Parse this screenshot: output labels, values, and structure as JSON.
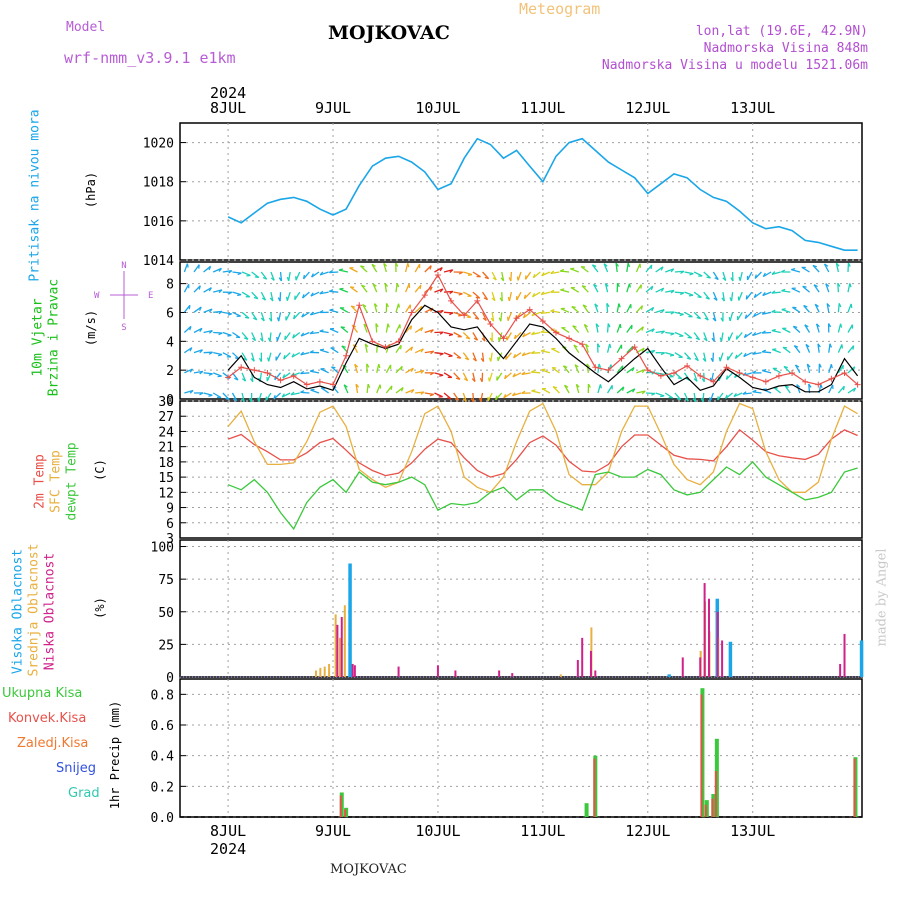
{
  "header": {
    "model_label": "Model",
    "model_name": "wrf-nmm_v3.9.1 e1km",
    "location": "MOJKOVAC",
    "product": "Meteogram",
    "coords": "lon,lat (19.6E, 42.9N)",
    "elevation": "Nadmorska Visina 848m",
    "model_elevation": "Nadmorska Visina u modelu 1521.06m",
    "footer_location": "MOJKOVAC",
    "signature": "made by Angel"
  },
  "colors": {
    "model": "#b85cd6",
    "product": "#f2c27a",
    "info": "#b24fd0",
    "pressure": "#1aa6e8",
    "wind_label_1": "#18c018",
    "wind_label_2": "#18c018",
    "temp2m": "#e8504a",
    "sfc": "#e8b040",
    "dew": "#3cc83c",
    "cloud_high": "#1aa6e8",
    "cloud_mid": "#e8b040",
    "cloud_low": "#d0208a",
    "precip_total": "#3cc83c",
    "precip_conv": "#e8504a",
    "precip_frz": "#f07830",
    "snow": "#3050e0",
    "graupel": "#30c8b0",
    "wind_speed": "#000000",
    "wind_gust": "#e8504a",
    "grid": "#a0a0a0"
  },
  "time_axis": {
    "year": "2024",
    "day_labels": [
      "8JUL",
      "9JUL",
      "10JUL",
      "11JUL",
      "12JUL",
      "13JUL"
    ]
  },
  "panel_labels": {
    "pressure": [
      "Pritisak na nivou mora",
      "(hPa)"
    ],
    "wind": [
      "10m Vjetar",
      "Brzina i Pravac",
      "(m/s)"
    ],
    "wind_rose": "N S W E",
    "temp": [
      "2m Temp",
      "SFC Temp",
      "dewpt Temp",
      "(C)"
    ],
    "cloud": [
      "Visoka Oblacnost",
      "Srednja Oblacnost",
      "Niska Oblacnost",
      "(%)"
    ],
    "precip_legend": [
      "Ukupna Kisa",
      "Konvek.Kisa",
      "Zaledj.Kisa",
      "Snijeg",
      "Grad"
    ],
    "precip_unit": "1hr Precip (mm)"
  },
  "chart_data": [
    {
      "type": "line",
      "panel": "pressure",
      "ylabel": "(hPa)",
      "ylim": [
        1014,
        1021
      ],
      "yticks": [
        1014,
        1016,
        1018,
        1020
      ],
      "x_hours": [
        0,
        3,
        6,
        9,
        12,
        15,
        18,
        21,
        24,
        27,
        30,
        33,
        36,
        39,
        42,
        45,
        48,
        51,
        54,
        57,
        60,
        63,
        66,
        69,
        72,
        75,
        78,
        81,
        84,
        87,
        90,
        93,
        96,
        99,
        102,
        105,
        108,
        111,
        114,
        117,
        120,
        123,
        126,
        129,
        132,
        135,
        138,
        141,
        144
      ],
      "series": [
        {
          "values": [
            1016.2,
            1015.9,
            1016.4,
            1016.9,
            1017.1,
            1017.2,
            1017.0,
            1016.6,
            1016.3,
            1016.6,
            1017.8,
            1018.8,
            1019.2,
            1019.3,
            1019.0,
            1018.5,
            1017.6,
            1017.9,
            1019.2,
            1020.2,
            1019.9,
            1019.2,
            1019.6,
            1018.8,
            1018.0,
            1019.3,
            1020.0,
            1020.2,
            1019.6,
            1019.0,
            1018.6,
            1018.2,
            1017.4,
            1017.9,
            1018.4,
            1018.2,
            1017.6,
            1017.2,
            1017.0,
            1016.5,
            1015.9,
            1015.6,
            1015.7,
            1015.5,
            1015.0,
            1014.9,
            1014.7,
            1014.5,
            1014.5
          ]
        }
      ]
    },
    {
      "type": "line",
      "panel": "wind",
      "ylabel": "(m/s)",
      "ylim": [
        0,
        9.5
      ],
      "yticks": [
        0,
        2,
        4,
        6,
        8
      ],
      "x_hours": [
        0,
        3,
        6,
        9,
        12,
        15,
        18,
        21,
        24,
        27,
        30,
        33,
        36,
        39,
        42,
        45,
        48,
        51,
        54,
        57,
        60,
        63,
        66,
        69,
        72,
        75,
        78,
        81,
        84,
        87,
        90,
        93,
        96,
        99,
        102,
        105,
        108,
        111,
        114,
        117,
        120,
        123,
        126,
        129,
        132,
        135,
        138,
        141,
        144
      ],
      "series": [
        {
          "values": [
            2.0,
            3.0,
            1.5,
            1.0,
            0.8,
            1.2,
            0.7,
            0.9,
            0.6,
            2.5,
            4.2,
            3.8,
            3.5,
            3.8,
            5.5,
            6.5,
            6.0,
            5.0,
            4.8,
            5.0,
            3.8,
            2.8,
            4.0,
            5.2,
            5.0,
            4.2,
            3.2,
            2.5,
            1.8,
            1.2,
            2.0,
            2.8,
            3.5,
            2.2,
            1.0,
            1.5,
            0.6,
            0.9,
            2.1,
            1.5,
            0.8,
            0.6,
            0.9,
            1.0,
            0.5,
            0.5,
            1.0,
            2.8,
            1.6
          ]
        },
        {
          "values": [
            1.5,
            2.2,
            2.0,
            1.8,
            1.3,
            1.6,
            1.0,
            1.2,
            1.0,
            3.0,
            6.5,
            4.0,
            3.6,
            4.0,
            6.0,
            7.2,
            8.6,
            6.8,
            5.8,
            6.8,
            5.2,
            4.2,
            5.6,
            6.2,
            5.4,
            4.6,
            4.2,
            3.8,
            2.2,
            2.0,
            2.8,
            3.6,
            2.0,
            1.6,
            1.8,
            2.3,
            1.6,
            1.2,
            2.2,
            1.8,
            1.5,
            1.2,
            1.6,
            1.8,
            1.2,
            1.0,
            1.4,
            1.8,
            1.0
          ]
        }
      ]
    },
    {
      "type": "line",
      "panel": "temperature",
      "ylabel": "(C)",
      "ylim": [
        3,
        30
      ],
      "yticks": [
        3,
        6,
        9,
        12,
        15,
        18,
        21,
        24,
        27,
        30
      ],
      "x_hours": [
        0,
        3,
        6,
        9,
        12,
        15,
        18,
        21,
        24,
        27,
        30,
        33,
        36,
        39,
        42,
        45,
        48,
        51,
        54,
        57,
        60,
        63,
        66,
        69,
        72,
        75,
        78,
        81,
        84,
        87,
        90,
        93,
        96,
        99,
        102,
        105,
        108,
        111,
        114,
        117,
        120,
        123,
        126,
        129,
        132,
        135,
        138,
        141,
        144
      ],
      "series": [
        {
          "values": [
            22.5,
            23.4,
            21.4,
            20.0,
            18.4,
            18.4,
            19.8,
            21.8,
            22.6,
            20.3,
            17.8,
            16.3,
            15.3,
            15.8,
            17.8,
            20.5,
            22.5,
            21.8,
            18.8,
            16.3,
            15.0,
            15.7,
            18.5,
            21.8,
            23.1,
            21.3,
            18.1,
            16.2,
            16.0,
            17.5,
            21.0,
            23.3,
            23.3,
            21.3,
            19.3,
            18.6,
            18.5,
            18.2,
            21.0,
            24.3,
            22.3,
            20.0,
            19.2,
            18.8,
            18.5,
            19.5,
            22.5,
            24.3,
            23.2
          ]
        },
        {
          "values": [
            25.0,
            28.0,
            22.0,
            17.5,
            17.5,
            17.8,
            22.0,
            27.8,
            29.0,
            25.0,
            16.5,
            14.5,
            13.0,
            14.0,
            20.0,
            27.5,
            29.0,
            24.0,
            15.0,
            13.0,
            12.0,
            15.0,
            22.0,
            28.0,
            29.5,
            24.0,
            15.5,
            13.5,
            13.5,
            16.0,
            24.0,
            29.0,
            29.0,
            23.5,
            17.5,
            14.5,
            13.5,
            16.0,
            24.0,
            29.5,
            28.5,
            20.0,
            14.5,
            12.0,
            12.0,
            14.0,
            22.5,
            29.0,
            27.5
          ]
        },
        {
          "values": [
            13.5,
            12.5,
            14.5,
            12.0,
            8.0,
            4.8,
            10.0,
            13.0,
            14.5,
            12.0,
            16.0,
            14.0,
            13.5,
            14.0,
            15.0,
            13.5,
            8.5,
            9.8,
            9.5,
            10.0,
            12.0,
            13.0,
            10.5,
            12.5,
            12.5,
            10.5,
            9.5,
            8.5,
            15.5,
            16.0,
            15.0,
            15.0,
            16.5,
            15.5,
            12.5,
            11.5,
            12.0,
            14.5,
            17.0,
            15.5,
            18.0,
            15.0,
            13.5,
            12.0,
            10.5,
            11.0,
            12.0,
            16.0,
            16.8
          ]
        }
      ]
    },
    {
      "type": "bar",
      "panel": "cloud",
      "ylabel": "(%)",
      "ylim": [
        0,
        105
      ],
      "yticks": [
        0,
        25,
        50,
        75,
        100
      ],
      "series": [
        {
          "name": "Visoka Oblacnost",
          "points": [
            [
              27,
              87
            ],
            [
              27.3,
              10
            ],
            [
              100,
              2
            ],
            [
              111,
              60
            ],
            [
              114,
              27
            ],
            [
              144,
              28
            ]
          ]
        },
        {
          "name": "Srednja Oblacnost",
          "points": [
            [
              21,
              5
            ],
            [
              22,
              7
            ],
            [
              23,
              8
            ],
            [
              24,
              10
            ],
            [
              25.5,
              48
            ],
            [
              26.5,
              30
            ],
            [
              27.6,
              55
            ],
            [
              53,
              1
            ],
            [
              77,
              2
            ],
            [
              84,
              38
            ],
            [
              109,
              20
            ],
            [
              110,
              58
            ],
            [
              111,
              35
            ],
            [
              113,
              30
            ]
          ]
        },
        {
          "name": "Niska Oblacnost",
          "points": [
            [
              25,
              40
            ],
            [
              26,
              46
            ],
            [
              28.5,
              10
            ],
            [
              29,
              9
            ],
            [
              39,
              8
            ],
            [
              48,
              9
            ],
            [
              52,
              5
            ],
            [
              62,
              5
            ],
            [
              65,
              3
            ],
            [
              80,
              13
            ],
            [
              81,
              30
            ],
            [
              83,
              20
            ],
            [
              84,
              5
            ],
            [
              104,
              15
            ],
            [
              108,
              15
            ],
            [
              109,
              72
            ],
            [
              110,
              60
            ],
            [
              112,
              50
            ],
            [
              113,
              28
            ],
            [
              140,
              10
            ],
            [
              141,
              33
            ]
          ]
        }
      ]
    },
    {
      "type": "bar",
      "panel": "precipitation",
      "ylabel": "1hr Precip (mm)",
      "ylim": [
        0,
        0.9
      ],
      "yticks": [
        0.0,
        0.2,
        0.4,
        0.6,
        0.8
      ],
      "series": [
        {
          "name": "Ukupna Kisa",
          "points": [
            [
              26,
              0.16
            ],
            [
              27,
              0.06
            ],
            [
              82,
              0.09
            ],
            [
              84,
              0.4
            ],
            [
              108.5,
              0.84
            ],
            [
              109.5,
              0.11
            ],
            [
              111,
              0.15
            ],
            [
              111.8,
              0.51
            ],
            [
              143.5,
              0.39
            ]
          ]
        },
        {
          "name": "Konvek.Kisa",
          "points": [
            [
              26,
              0.14
            ],
            [
              27,
              0.05
            ],
            [
              84,
              0.38
            ],
            [
              108.5,
              0.8
            ],
            [
              109.5,
              0.08
            ],
            [
              111,
              0.12
            ],
            [
              111.8,
              0.3
            ],
            [
              143.5,
              0.38
            ]
          ]
        }
      ]
    }
  ]
}
